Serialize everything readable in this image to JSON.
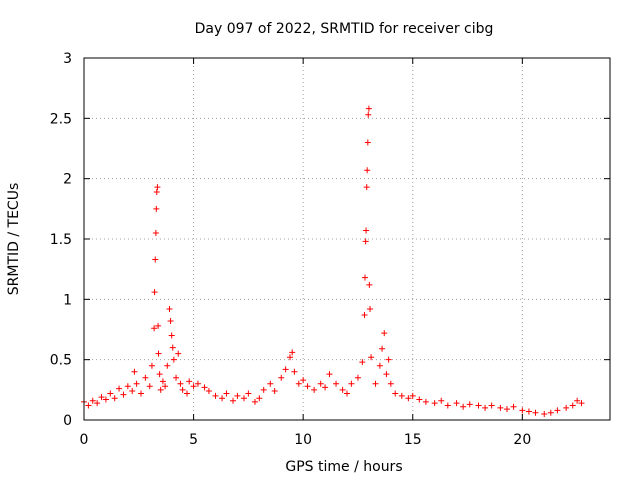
{
  "chart_data": {
    "type": "scatter",
    "title": "Day 097 of 2022, SRMTID for receiver cibg",
    "xlabel": "GPS time / hours",
    "ylabel": "SRMTID / TECUs",
    "xlim": [
      0,
      24
    ],
    "ylim": [
      0,
      3
    ],
    "xticks": [
      0,
      5,
      10,
      15,
      20
    ],
    "xtick_labels": [
      "0",
      "5",
      "10",
      "15",
      "20"
    ],
    "yticks": [
      0,
      0.5,
      1,
      1.5,
      2,
      2.5,
      3
    ],
    "ytick_labels": [
      "0",
      "0.5",
      "1",
      "1.5",
      "2",
      "2.5",
      "3"
    ],
    "grid": true,
    "marker": "+",
    "marker_color": "#ff0000",
    "series": [
      {
        "name": "SRMTID",
        "points": [
          [
            0.0,
            0.15
          ],
          [
            0.2,
            0.12
          ],
          [
            0.4,
            0.16
          ],
          [
            0.6,
            0.14
          ],
          [
            0.8,
            0.19
          ],
          [
            1.0,
            0.17
          ],
          [
            1.2,
            0.22
          ],
          [
            1.4,
            0.18
          ],
          [
            1.6,
            0.26
          ],
          [
            1.8,
            0.21
          ],
          [
            2.0,
            0.28
          ],
          [
            2.2,
            0.24
          ],
          [
            2.3,
            0.4
          ],
          [
            2.4,
            0.3
          ],
          [
            2.6,
            0.22
          ],
          [
            2.8,
            0.35
          ],
          [
            3.0,
            0.28
          ],
          [
            3.1,
            0.45
          ],
          [
            3.2,
            0.76
          ],
          [
            3.22,
            1.06
          ],
          [
            3.25,
            1.33
          ],
          [
            3.28,
            1.55
          ],
          [
            3.3,
            1.75
          ],
          [
            3.32,
            1.89
          ],
          [
            3.35,
            1.93
          ],
          [
            3.38,
            0.78
          ],
          [
            3.4,
            0.55
          ],
          [
            3.45,
            0.38
          ],
          [
            3.5,
            0.25
          ],
          [
            3.6,
            0.32
          ],
          [
            3.7,
            0.28
          ],
          [
            3.8,
            0.45
          ],
          [
            3.9,
            0.92
          ],
          [
            3.95,
            0.82
          ],
          [
            4.0,
            0.7
          ],
          [
            4.05,
            0.6
          ],
          [
            4.1,
            0.5
          ],
          [
            4.2,
            0.35
          ],
          [
            4.3,
            0.55
          ],
          [
            4.4,
            0.3
          ],
          [
            4.5,
            0.25
          ],
          [
            4.7,
            0.22
          ],
          [
            4.8,
            0.32
          ],
          [
            5.0,
            0.28
          ],
          [
            5.2,
            0.3
          ],
          [
            5.5,
            0.27
          ],
          [
            5.7,
            0.24
          ],
          [
            6.0,
            0.2
          ],
          [
            6.3,
            0.18
          ],
          [
            6.5,
            0.22
          ],
          [
            6.8,
            0.16
          ],
          [
            7.0,
            0.2
          ],
          [
            7.3,
            0.18
          ],
          [
            7.5,
            0.22
          ],
          [
            7.8,
            0.15
          ],
          [
            8.0,
            0.18
          ],
          [
            8.2,
            0.25
          ],
          [
            8.5,
            0.3
          ],
          [
            8.7,
            0.24
          ],
          [
            9.0,
            0.35
          ],
          [
            9.2,
            0.42
          ],
          [
            9.4,
            0.52
          ],
          [
            9.5,
            0.56
          ],
          [
            9.6,
            0.4
          ],
          [
            9.8,
            0.3
          ],
          [
            10.0,
            0.33
          ],
          [
            10.2,
            0.28
          ],
          [
            10.5,
            0.25
          ],
          [
            10.8,
            0.3
          ],
          [
            11.0,
            0.27
          ],
          [
            11.2,
            0.38
          ],
          [
            11.5,
            0.3
          ],
          [
            11.8,
            0.25
          ],
          [
            12.0,
            0.22
          ],
          [
            12.2,
            0.3
          ],
          [
            12.5,
            0.35
          ],
          [
            12.7,
            0.48
          ],
          [
            12.8,
            0.87
          ],
          [
            12.82,
            1.18
          ],
          [
            12.85,
            1.48
          ],
          [
            12.87,
            1.57
          ],
          [
            12.9,
            1.93
          ],
          [
            12.92,
            2.07
          ],
          [
            12.95,
            2.3
          ],
          [
            12.97,
            2.53
          ],
          [
            13.0,
            2.58
          ],
          [
            13.02,
            1.12
          ],
          [
            13.05,
            0.92
          ],
          [
            13.1,
            0.52
          ],
          [
            13.3,
            0.3
          ],
          [
            13.5,
            0.45
          ],
          [
            13.6,
            0.59
          ],
          [
            13.7,
            0.72
          ],
          [
            13.8,
            0.38
          ],
          [
            13.9,
            0.5
          ],
          [
            14.0,
            0.3
          ],
          [
            14.2,
            0.22
          ],
          [
            14.5,
            0.2
          ],
          [
            14.8,
            0.18
          ],
          [
            15.0,
            0.2
          ],
          [
            15.3,
            0.17
          ],
          [
            15.6,
            0.15
          ],
          [
            16.0,
            0.14
          ],
          [
            16.3,
            0.16
          ],
          [
            16.6,
            0.12
          ],
          [
            17.0,
            0.14
          ],
          [
            17.3,
            0.11
          ],
          [
            17.6,
            0.13
          ],
          [
            18.0,
            0.12
          ],
          [
            18.3,
            0.1
          ],
          [
            18.6,
            0.12
          ],
          [
            19.0,
            0.1
          ],
          [
            19.3,
            0.09
          ],
          [
            19.6,
            0.11
          ],
          [
            20.0,
            0.08
          ],
          [
            20.3,
            0.07
          ],
          [
            20.6,
            0.06
          ],
          [
            21.0,
            0.05
          ],
          [
            21.3,
            0.06
          ],
          [
            21.6,
            0.08
          ],
          [
            22.0,
            0.1
          ],
          [
            22.3,
            0.12
          ],
          [
            22.5,
            0.16
          ],
          [
            22.7,
            0.14
          ]
        ]
      }
    ]
  }
}
